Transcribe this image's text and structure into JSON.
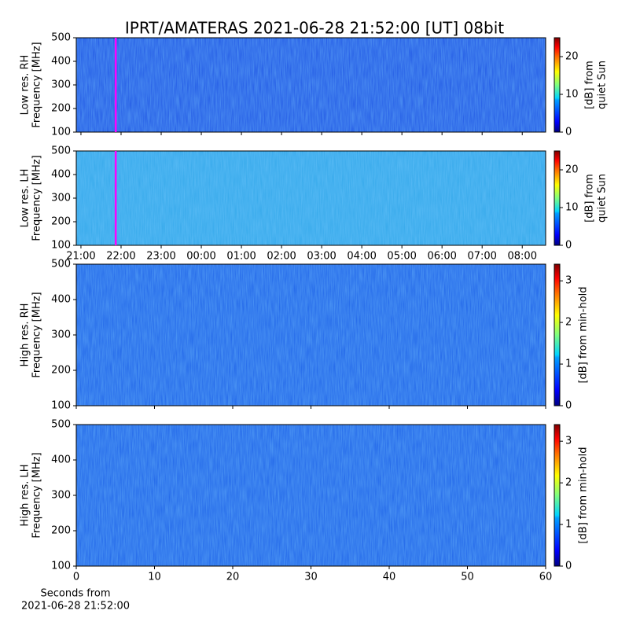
{
  "title": "IPRT/AMATERAS 2021-06-28 21:52:00 [UT]   08bit",
  "chart_data": [
    {
      "type": "heatmap",
      "ylabel": [
        "Low res. RH",
        "Frequency [MHz]"
      ],
      "ylim": [
        100,
        500
      ],
      "yticks": [
        100,
        200,
        300,
        400,
        500
      ],
      "colormap": "jet",
      "color": "#1f55e4",
      "clim": [
        0,
        25
      ],
      "cticks": [
        0,
        10,
        20
      ],
      "clabel": [
        "[dB] from",
        "quiet Sun"
      ],
      "marker_x": 52,
      "marker_color": "#ff00ff"
    },
    {
      "type": "heatmap",
      "ylabel": [
        "Low res. LH",
        "Frequency [MHz]"
      ],
      "ylim": [
        100,
        500
      ],
      "yticks": [
        100,
        200,
        300,
        400,
        500
      ],
      "xlim": [
        -7,
        695
      ],
      "xticks": [
        {
          "value": 0,
          "label": "21:00"
        },
        {
          "value": 60,
          "label": "22:00"
        },
        {
          "value": 120,
          "label": "23:00"
        },
        {
          "value": 180,
          "label": "00:00"
        },
        {
          "value": 240,
          "label": "01:00"
        },
        {
          "value": 300,
          "label": "02:00"
        },
        {
          "value": 360,
          "label": "03:00"
        },
        {
          "value": 420,
          "label": "04:00"
        },
        {
          "value": 480,
          "label": "05:00"
        },
        {
          "value": 540,
          "label": "06:00"
        },
        {
          "value": 600,
          "label": "07:00"
        },
        {
          "value": 660,
          "label": "08:00"
        }
      ],
      "colormap": "jet",
      "color": "#33a8ea",
      "clim": [
        0,
        25
      ],
      "cticks": [
        0,
        10,
        20
      ],
      "clabel": [
        "[dB] from",
        "quiet Sun"
      ],
      "marker_x": 52,
      "marker_color": "#ff00ff"
    },
    {
      "type": "heatmap",
      "ylabel": [
        "High res. RH",
        "Frequency [MHz]"
      ],
      "ylim": [
        100,
        500
      ],
      "yticks": [
        100,
        200,
        300,
        400,
        500
      ],
      "colormap": "jet",
      "color": "#1e62e8",
      "clim": [
        0,
        3.4
      ],
      "cticks": [
        0,
        1,
        2,
        3
      ],
      "clabel": [
        "[dB] from min-hold"
      ]
    },
    {
      "type": "heatmap",
      "ylabel": [
        "High res. LH",
        "Frequency [MHz]"
      ],
      "ylim": [
        100,
        500
      ],
      "yticks": [
        100,
        200,
        300,
        400,
        500
      ],
      "xlim": [
        0,
        60
      ],
      "xticks": [
        0,
        10,
        20,
        30,
        40,
        50,
        60
      ],
      "xlabel": [
        "Seconds from",
        "2021-06-28 21:52:00"
      ],
      "colormap": "jet",
      "color": "#1e62e8",
      "clim": [
        0,
        3.4
      ],
      "cticks": [
        0,
        1,
        2,
        3
      ],
      "clabel": [
        "[dB] from min-hold"
      ]
    }
  ]
}
